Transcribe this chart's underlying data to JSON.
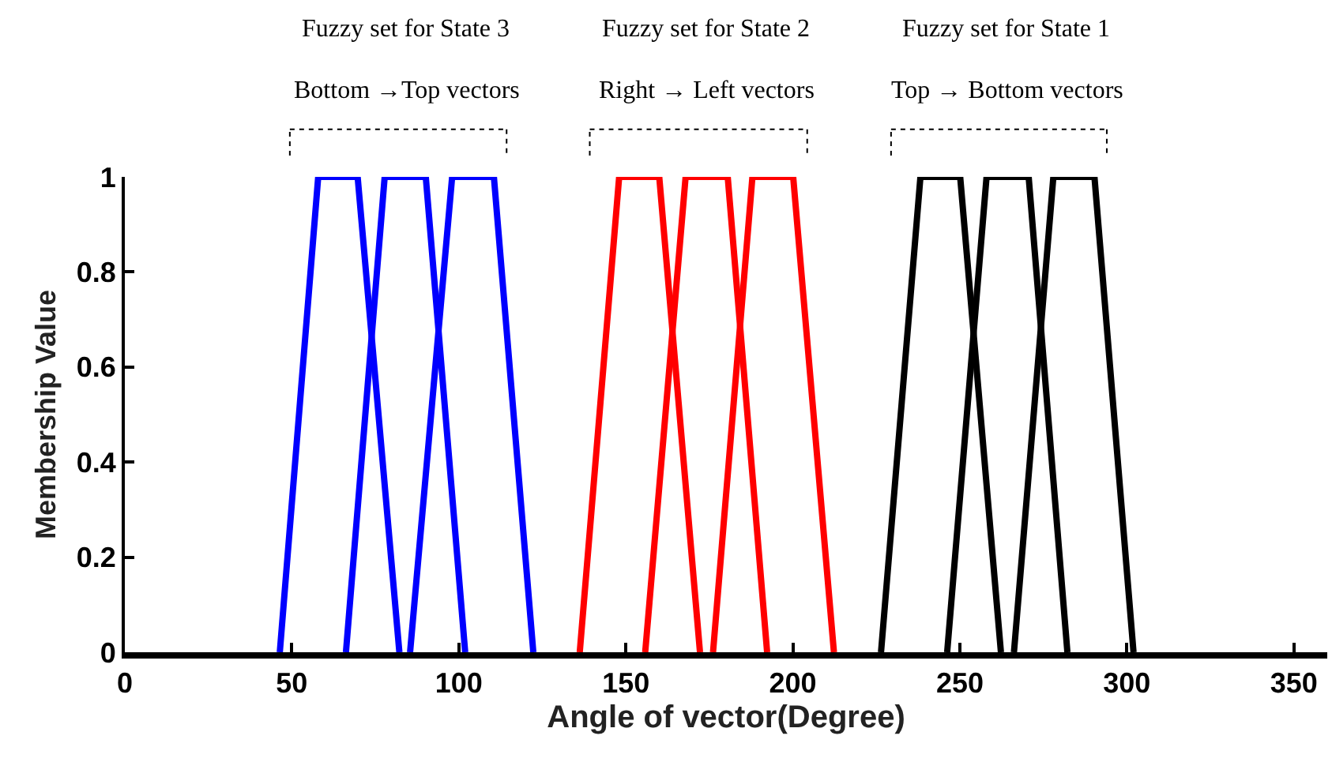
{
  "chart_data": {
    "type": "line",
    "xlabel": "Angle of vector(Degree)",
    "ylabel": "Membership Value",
    "xlim": [
      0,
      360
    ],
    "xticks": [
      0,
      50,
      100,
      150,
      200,
      250,
      300,
      350
    ],
    "ylim": [
      0,
      1
    ],
    "yticks": [
      0,
      0.2,
      0.4,
      0.6,
      0.8,
      1
    ],
    "marker": "none",
    "line_style": "solid",
    "annotations": [
      "Fuzzy set for State 3",
      "Fuzzy set for State 2",
      "Fuzzy set for State 1",
      "Bottom →Top vectors",
      "Right → Left vectors",
      "Top → Bottom vectors"
    ],
    "series": [
      {
        "color": "#0000ff",
        "x": [
          46.4,
          57.9,
          69.7,
          82.2
        ],
        "values": [
          0,
          1,
          1,
          0
        ]
      },
      {
        "color": "#0000ff",
        "x": [
          66.2,
          77.8,
          90.1,
          101.9
        ],
        "values": [
          0,
          1,
          1,
          0
        ]
      },
      {
        "color": "#0000ff",
        "x": [
          85.4,
          98,
          110.5,
          122.3
        ],
        "values": [
          0,
          1,
          1,
          0
        ]
      },
      {
        "color": "#ff0000",
        "x": [
          136.2,
          148,
          160,
          172.2
        ],
        "values": [
          0,
          1,
          1,
          0
        ]
      },
      {
        "color": "#ff0000",
        "x": [
          155.8,
          167.9,
          180.5,
          192.3
        ],
        "values": [
          0,
          1,
          1,
          0
        ]
      },
      {
        "color": "#ff0000",
        "x": [
          176.1,
          187.9,
          200.1,
          212.3
        ],
        "values": [
          0,
          1,
          1,
          0
        ]
      },
      {
        "color": "#000000",
        "x": [
          226.4,
          238.2,
          250.1,
          262.3
        ],
        "values": [
          0,
          1,
          1,
          0
        ]
      },
      {
        "color": "#000000",
        "x": [
          246.2,
          258,
          270.6,
          282.2
        ],
        "values": [
          0,
          1,
          1,
          0
        ]
      },
      {
        "color": "#000000",
        "x": [
          266.2,
          278,
          290.3,
          302
        ],
        "values": [
          0,
          1,
          1,
          0
        ]
      }
    ]
  }
}
